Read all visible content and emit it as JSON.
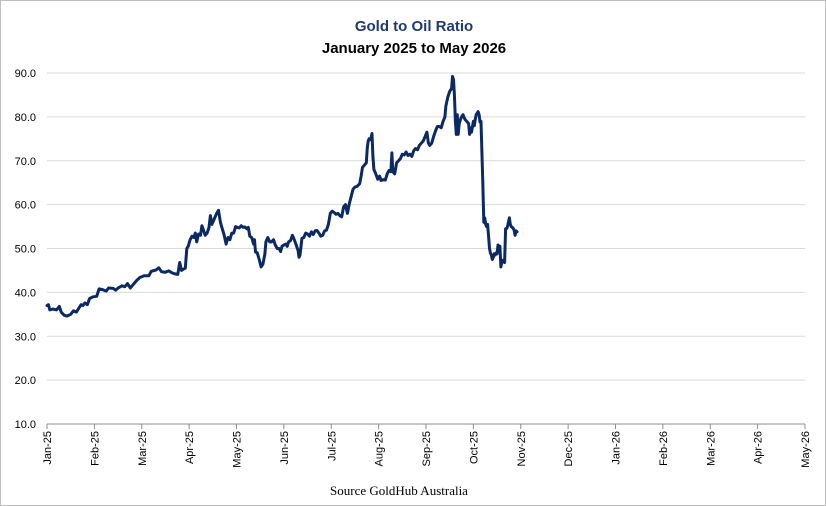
{
  "chart_data": {
    "type": "line",
    "title": "Gold to Oil Ratio",
    "subtitle": "January 2025 to May 2026",
    "source": "Source GoldHub Australia",
    "ylim": [
      10,
      90
    ],
    "y_ticks": [
      "10.0",
      "20.0",
      "30.0",
      "40.0",
      "50.0",
      "60.0",
      "70.0",
      "80.0",
      "90.0"
    ],
    "x_ticks": [
      "Jan-25",
      "Feb-25",
      "Mar-25",
      "Apr-25",
      "May-25",
      "Jun-25",
      "Jul-25",
      "Aug-25",
      "Sep-25",
      "Oct-25",
      "Nov-25",
      "Dec-25",
      "Jan-26",
      "Feb-26",
      "Mar-26",
      "Apr-26",
      "May-26"
    ],
    "grid": "horizontal",
    "colors": {
      "line": "#0b2a63",
      "title": "#1f3a73",
      "grid": "#d9d9d9"
    },
    "series": [
      {
        "points": [
          [
            0.0,
            37.0
          ],
          [
            0.03,
            37.2
          ],
          [
            0.06,
            36.0
          ],
          [
            0.12,
            36.2
          ],
          [
            0.2,
            36.0
          ],
          [
            0.26,
            36.8
          ],
          [
            0.3,
            35.5
          ],
          [
            0.36,
            34.8
          ],
          [
            0.42,
            34.6
          ],
          [
            0.5,
            35.0
          ],
          [
            0.56,
            35.8
          ],
          [
            0.62,
            35.5
          ],
          [
            0.66,
            36.2
          ],
          [
            0.72,
            37.2
          ],
          [
            0.76,
            37.0
          ],
          [
            0.8,
            37.6
          ],
          [
            0.85,
            37.2
          ],
          [
            0.9,
            38.6
          ],
          [
            0.97,
            39.0
          ],
          [
            1.05,
            39.1
          ],
          [
            1.1,
            40.8
          ],
          [
            1.18,
            40.6
          ],
          [
            1.25,
            40.3
          ],
          [
            1.3,
            41.0
          ],
          [
            1.4,
            40.9
          ],
          [
            1.45,
            40.5
          ],
          [
            1.5,
            41.0
          ],
          [
            1.58,
            41.5
          ],
          [
            1.64,
            41.3
          ],
          [
            1.7,
            42.0
          ],
          [
            1.76,
            41.0
          ],
          [
            1.82,
            41.8
          ],
          [
            1.9,
            42.8
          ],
          [
            1.96,
            43.4
          ],
          [
            2.05,
            43.8
          ],
          [
            2.15,
            43.8
          ],
          [
            2.2,
            44.8
          ],
          [
            2.3,
            45.1
          ],
          [
            2.36,
            45.6
          ],
          [
            2.42,
            44.7
          ],
          [
            2.5,
            44.6
          ],
          [
            2.57,
            44.9
          ],
          [
            2.63,
            44.5
          ],
          [
            2.7,
            44.2
          ],
          [
            2.76,
            44.1
          ],
          [
            2.8,
            46.8
          ],
          [
            2.84,
            45.0
          ],
          [
            2.88,
            45.3
          ],
          [
            2.92,
            45.5
          ],
          [
            2.95,
            50.0
          ],
          [
            2.98,
            50.5
          ],
          [
            3.02,
            52.0
          ],
          [
            3.06,
            52.8
          ],
          [
            3.1,
            52.5
          ],
          [
            3.13,
            53.5
          ],
          [
            3.16,
            51.5
          ],
          [
            3.2,
            53.3
          ],
          [
            3.24,
            53.0
          ],
          [
            3.27,
            55.2
          ],
          [
            3.3,
            54.3
          ],
          [
            3.34,
            53.0
          ],
          [
            3.38,
            53.5
          ],
          [
            3.42,
            54.8
          ],
          [
            3.45,
            57.5
          ],
          [
            3.48,
            55.5
          ],
          [
            3.52,
            56.5
          ],
          [
            3.58,
            58.0
          ],
          [
            3.62,
            58.7
          ],
          [
            3.66,
            56.0
          ],
          [
            3.7,
            54.5
          ],
          [
            3.74,
            53.0
          ],
          [
            3.78,
            51.0
          ],
          [
            3.82,
            52.5
          ],
          [
            3.86,
            52.0
          ],
          [
            3.9,
            53.5
          ],
          [
            3.94,
            53.5
          ],
          [
            3.98,
            55.0
          ],
          [
            4.02,
            54.8
          ],
          [
            4.06,
            54.7
          ],
          [
            4.1,
            55.2
          ],
          [
            4.14,
            54.8
          ],
          [
            4.18,
            54.9
          ],
          [
            4.22,
            54.5
          ],
          [
            4.25,
            54.8
          ],
          [
            4.28,
            52.8
          ],
          [
            4.32,
            52.5
          ],
          [
            4.36,
            51.0
          ],
          [
            4.38,
            52.0
          ],
          [
            4.4,
            49.2
          ],
          [
            4.44,
            49.0
          ],
          [
            4.48,
            47.5
          ],
          [
            4.52,
            45.8
          ],
          [
            4.56,
            46.5
          ],
          [
            4.6,
            48.8
          ],
          [
            4.62,
            51.5
          ],
          [
            4.66,
            52.5
          ],
          [
            4.7,
            51.5
          ],
          [
            4.74,
            51.5
          ],
          [
            4.78,
            52.0
          ],
          [
            4.82,
            50.8
          ],
          [
            4.86,
            50.0
          ],
          [
            4.9,
            50.0
          ],
          [
            4.93,
            49.3
          ],
          [
            4.96,
            50.5
          ],
          [
            5.0,
            50.8
          ],
          [
            5.04,
            51.0
          ],
          [
            5.07,
            50.5
          ],
          [
            5.1,
            51.5
          ],
          [
            5.14,
            51.8
          ],
          [
            5.18,
            53.0
          ],
          [
            5.22,
            52.0
          ],
          [
            5.26,
            50.8
          ],
          [
            5.3,
            49.5
          ],
          [
            5.32,
            48.0
          ],
          [
            5.34,
            48.5
          ],
          [
            5.38,
            52.3
          ],
          [
            5.42,
            52.5
          ],
          [
            5.46,
            53.5
          ],
          [
            5.5,
            53.3
          ],
          [
            5.54,
            52.8
          ],
          [
            5.58,
            53.8
          ],
          [
            5.62,
            53.2
          ],
          [
            5.66,
            54.0
          ],
          [
            5.7,
            54.1
          ],
          [
            5.74,
            53.5
          ],
          [
            5.78,
            52.8
          ],
          [
            5.82,
            53.0
          ],
          [
            5.86,
            54.0
          ],
          [
            5.9,
            54.2
          ],
          [
            5.94,
            55.5
          ],
          [
            5.98,
            58.0
          ],
          [
            6.02,
            58.5
          ],
          [
            6.06,
            58.2
          ],
          [
            6.1,
            57.8
          ],
          [
            6.14,
            58.0
          ],
          [
            6.18,
            57.5
          ],
          [
            6.22,
            57.2
          ],
          [
            6.26,
            59.5
          ],
          [
            6.3,
            60.0
          ],
          [
            6.34,
            58.0
          ],
          [
            6.38,
            60.2
          ],
          [
            6.42,
            61.8
          ],
          [
            6.46,
            63.5
          ],
          [
            6.5,
            64.0
          ],
          [
            6.55,
            64.2
          ],
          [
            6.6,
            64.8
          ],
          [
            6.63,
            66.5
          ],
          [
            6.66,
            68.5
          ],
          [
            6.7,
            69.0
          ],
          [
            6.74,
            69.5
          ],
          [
            6.76,
            73.0
          ],
          [
            6.78,
            74.5
          ],
          [
            6.8,
            75.0
          ],
          [
            6.83,
            74.8
          ],
          [
            6.86,
            76.2
          ],
          [
            6.88,
            71.0
          ],
          [
            6.9,
            68.0
          ],
          [
            6.94,
            67.0
          ],
          [
            6.98,
            65.8
          ],
          [
            7.02,
            66.5
          ],
          [
            7.05,
            65.5
          ],
          [
            7.1,
            65.7
          ],
          [
            7.14,
            65.6
          ],
          [
            7.18,
            67.0
          ],
          [
            7.22,
            67.8
          ],
          [
            7.26,
            67.5
          ],
          [
            7.28,
            71.8
          ],
          [
            7.3,
            67.5
          ],
          [
            7.34,
            67.0
          ],
          [
            7.38,
            69.5
          ],
          [
            7.42,
            70.0
          ],
          [
            7.46,
            70.5
          ],
          [
            7.5,
            71.5
          ],
          [
            7.54,
            71.3
          ],
          [
            7.58,
            72.0
          ],
          [
            7.62,
            71.2
          ],
          [
            7.66,
            71.5
          ],
          [
            7.7,
            71.0
          ],
          [
            7.74,
            72.3
          ],
          [
            7.78,
            72.8
          ],
          [
            7.82,
            72.5
          ],
          [
            7.86,
            73.5
          ],
          [
            7.9,
            74.0
          ],
          [
            7.94,
            74.5
          ],
          [
            7.98,
            75.5
          ],
          [
            8.02,
            76.5
          ],
          [
            8.05,
            74.0
          ],
          [
            8.08,
            73.5
          ],
          [
            8.12,
            74.0
          ],
          [
            8.16,
            75.5
          ],
          [
            8.2,
            76.8
          ],
          [
            8.24,
            77.8
          ],
          [
            8.28,
            77.8
          ],
          [
            8.32,
            77.5
          ],
          [
            8.36,
            79.0
          ],
          [
            8.4,
            80.0
          ],
          [
            8.42,
            82.5
          ],
          [
            8.46,
            84.5
          ],
          [
            8.5,
            85.8
          ],
          [
            8.54,
            86.5
          ],
          [
            8.56,
            89.2
          ],
          [
            8.58,
            88.5
          ],
          [
            8.6,
            85.0
          ],
          [
            8.62,
            79.0
          ],
          [
            8.64,
            76.0
          ],
          [
            8.66,
            80.5
          ],
          [
            8.68,
            76.0
          ],
          [
            8.7,
            78.5
          ],
          [
            8.74,
            79.8
          ],
          [
            8.78,
            80.5
          ],
          [
            8.82,
            79.5
          ],
          [
            8.86,
            79.0
          ],
          [
            8.9,
            78.5
          ],
          [
            8.92,
            76.0
          ],
          [
            8.94,
            77.5
          ],
          [
            8.96,
            76.5
          ],
          [
            9.0,
            79.0
          ],
          [
            9.02,
            78.0
          ],
          [
            9.04,
            79.5
          ],
          [
            9.06,
            80.5
          ],
          [
            9.1,
            81.2
          ],
          [
            9.12,
            80.5
          ],
          [
            9.14,
            78.8
          ],
          [
            9.16,
            79.0
          ],
          [
            9.18,
            72.0
          ],
          [
            9.2,
            65.0
          ],
          [
            9.22,
            56.0
          ],
          [
            9.24,
            57.0
          ],
          [
            9.26,
            55.5
          ],
          [
            9.28,
            55.0
          ],
          [
            9.3,
            55.5
          ],
          [
            9.32,
            53.0
          ],
          [
            9.34,
            50.0
          ],
          [
            9.36,
            49.0
          ],
          [
            9.38,
            48.5
          ],
          [
            9.4,
            47.5
          ],
          [
            9.42,
            48.0
          ],
          [
            9.44,
            48.8
          ],
          [
            9.46,
            48.5
          ],
          [
            9.48,
            49.0
          ],
          [
            9.5,
            48.8
          ],
          [
            9.52,
            50.8
          ],
          [
            9.54,
            50.5
          ],
          [
            9.56,
            50.5
          ],
          [
            9.58,
            45.8
          ],
          [
            9.6,
            47.0
          ],
          [
            9.62,
            47.3
          ],
          [
            9.64,
            47.0
          ],
          [
            9.66,
            46.8
          ],
          [
            9.68,
            54.5
          ],
          [
            9.7,
            54.5
          ],
          [
            9.72,
            55.0
          ],
          [
            9.74,
            56.0
          ],
          [
            9.76,
            57.0
          ],
          [
            9.78,
            55.5
          ],
          [
            9.8,
            55.0
          ],
          [
            9.82,
            54.8
          ],
          [
            9.84,
            54.6
          ],
          [
            9.86,
            54.2
          ],
          [
            9.88,
            53.0
          ],
          [
            9.9,
            54.0
          ],
          [
            9.92,
            53.8
          ]
        ]
      }
    ]
  }
}
